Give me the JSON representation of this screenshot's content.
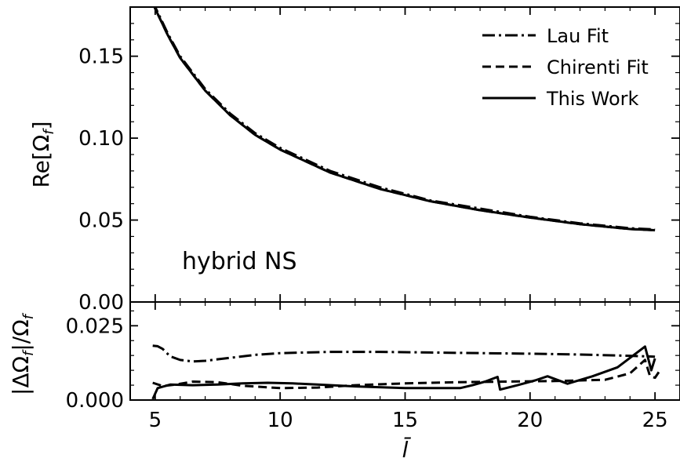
{
  "chart_data": [
    {
      "type": "line",
      "panel": "top",
      "ylabel": "Re[Ω_f]",
      "xlim": [
        4,
        26
      ],
      "ylim": [
        0,
        0.18
      ],
      "yticks": [
        0.0,
        0.05,
        0.1,
        0.15
      ],
      "ytick_labels": [
        "0.00",
        "0.05",
        "0.10",
        "0.15"
      ],
      "annotation": "hybrid NS",
      "legend": "top-right",
      "series": [
        {
          "name": "Lau Fit",
          "style": "dashdot",
          "x": [
            4.9,
            5,
            5.5,
            6,
            7,
            8,
            9,
            10,
            12,
            14,
            16,
            18,
            20,
            22,
            24,
            25
          ],
          "y": [
            0.184,
            0.18,
            0.164,
            0.15,
            0.13,
            0.115,
            0.103,
            0.094,
            0.08,
            0.07,
            0.062,
            0.057,
            0.052,
            0.048,
            0.045,
            0.0443
          ]
        },
        {
          "name": "Chirenti Fit",
          "style": "dashed",
          "x": [
            4.9,
            5,
            5.5,
            6,
            7,
            8,
            9,
            10,
            12,
            14,
            16,
            18,
            20,
            22,
            24,
            25
          ],
          "y": [
            0.183,
            0.179,
            0.163,
            0.149,
            0.129,
            0.114,
            0.102,
            0.093,
            0.079,
            0.069,
            0.0615,
            0.056,
            0.0515,
            0.0475,
            0.0445,
            0.0438
          ]
        },
        {
          "name": "This Work",
          "style": "solid",
          "x": [
            4.9,
            5,
            5.5,
            6,
            7,
            8,
            9,
            10,
            12,
            14,
            16,
            18,
            20,
            22,
            24,
            25
          ],
          "y": [
            0.183,
            0.179,
            0.163,
            0.149,
            0.129,
            0.114,
            0.102,
            0.093,
            0.079,
            0.069,
            0.0615,
            0.056,
            0.0515,
            0.0475,
            0.0445,
            0.0438
          ]
        }
      ]
    },
    {
      "type": "line",
      "panel": "bottom",
      "xlabel": "l̄",
      "ylabel": "|ΔΩ_f|/Ω_f",
      "xlim": [
        4,
        26
      ],
      "ylim": [
        0,
        0.033
      ],
      "xticks": [
        5,
        10,
        15,
        20,
        25
      ],
      "xtick_labels": [
        "5",
        "10",
        "15",
        "20",
        "25"
      ],
      "yticks": [
        0.0,
        0.025
      ],
      "ytick_labels": [
        "0.000",
        "0.025"
      ],
      "series": [
        {
          "name": "Lau Fit",
          "style": "dashdot",
          "x": [
            4.9,
            5.1,
            5.3,
            5.6,
            6.0,
            6.5,
            7.0,
            8.0,
            9.0,
            10.0,
            12.0,
            14.0,
            16.0,
            18.0,
            20.0,
            22.0,
            24.0,
            25.0
          ],
          "y": [
            0.0183,
            0.0181,
            0.0172,
            0.0147,
            0.0135,
            0.013,
            0.0132,
            0.0142,
            0.0152,
            0.0158,
            0.0162,
            0.0162,
            0.016,
            0.0158,
            0.0156,
            0.0153,
            0.0149,
            0.0146
          ]
        },
        {
          "name": "Chirenti Fit",
          "style": "dashed",
          "x": [
            4.9,
            5.3,
            5.8,
            6.5,
            7.5,
            8.5,
            10.0,
            11.5,
            13.0,
            15.0,
            17.0,
            19.0,
            21.0,
            23.0,
            24.0,
            24.6,
            24.8,
            25.0,
            25.2
          ],
          "y": [
            0.0058,
            0.0047,
            0.0052,
            0.0062,
            0.006,
            0.0048,
            0.004,
            0.0042,
            0.005,
            0.0056,
            0.006,
            0.0062,
            0.0064,
            0.0068,
            0.009,
            0.0135,
            0.008,
            0.0075,
            0.01
          ]
        },
        {
          "name": "This Work",
          "style": "solid",
          "x": [
            4.9,
            5.1,
            5.6,
            6.5,
            7.5,
            8.5,
            9.5,
            10.5,
            11.5,
            13.0,
            15.0,
            17.2,
            17.7,
            18.2,
            18.7,
            18.8,
            19.5,
            20.2,
            20.7,
            21.5,
            22.5,
            23.5,
            24.6,
            24.85,
            25.0
          ],
          "y": [
            0.0003,
            0.004,
            0.0052,
            0.005,
            0.0052,
            0.0056,
            0.0058,
            0.0056,
            0.0052,
            0.0046,
            0.004,
            0.004,
            0.005,
            0.0062,
            0.0078,
            0.0035,
            0.005,
            0.0066,
            0.008,
            0.0055,
            0.008,
            0.011,
            0.018,
            0.01,
            0.014
          ]
        }
      ]
    }
  ]
}
